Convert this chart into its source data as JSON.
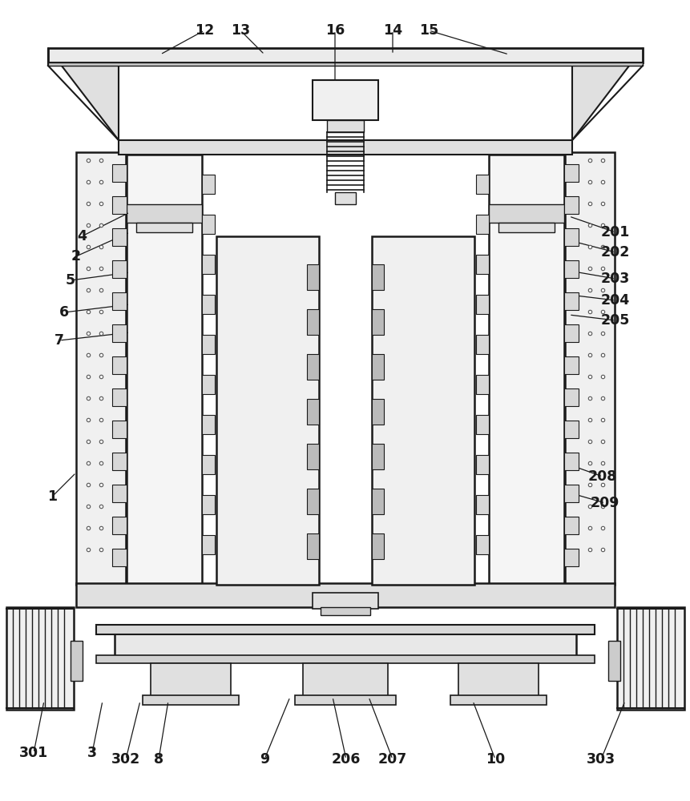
{
  "bg_color": "#ffffff",
  "lc": "#1a1a1a",
  "figsize": [
    8.62,
    10.0
  ],
  "dpi": 100,
  "labels_data": [
    [
      "12",
      255,
      38,
      200,
      68
    ],
    [
      "13",
      300,
      38,
      330,
      68
    ],
    [
      "16",
      418,
      38,
      418,
      105
    ],
    [
      "14",
      490,
      38,
      490,
      68
    ],
    [
      "15",
      535,
      38,
      635,
      68
    ],
    [
      "4",
      102,
      295,
      162,
      265
    ],
    [
      "2",
      95,
      320,
      162,
      290
    ],
    [
      "5",
      88,
      350,
      162,
      340
    ],
    [
      "6",
      80,
      390,
      162,
      380
    ],
    [
      "7",
      74,
      425,
      162,
      415
    ],
    [
      "1",
      65,
      620,
      95,
      590
    ],
    [
      "201",
      768,
      290,
      710,
      270
    ],
    [
      "202",
      768,
      315,
      710,
      300
    ],
    [
      "203",
      768,
      348,
      710,
      338
    ],
    [
      "204",
      768,
      375,
      710,
      368
    ],
    [
      "205",
      768,
      400,
      710,
      393
    ],
    [
      "208",
      752,
      595,
      710,
      580
    ],
    [
      "209",
      755,
      628,
      710,
      615
    ],
    [
      "301",
      42,
      940,
      55,
      875
    ],
    [
      "3",
      115,
      940,
      128,
      875
    ],
    [
      "302",
      157,
      948,
      175,
      875
    ],
    [
      "8",
      198,
      948,
      210,
      875
    ],
    [
      "9",
      330,
      948,
      362,
      870
    ],
    [
      "206",
      432,
      948,
      415,
      870
    ],
    [
      "207",
      490,
      948,
      460,
      870
    ],
    [
      "10",
      618,
      948,
      590,
      875
    ],
    [
      "303",
      750,
      948,
      780,
      875
    ]
  ]
}
